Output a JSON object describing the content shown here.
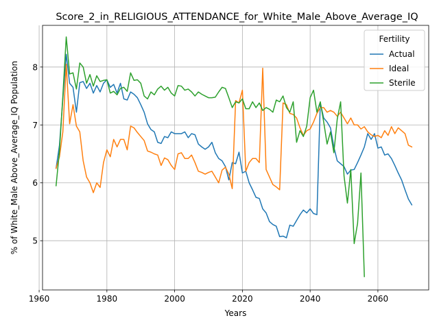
{
  "chart_data": {
    "type": "line",
    "title": "Score_2_in_RELIGIOUS_ATTENDANCE_for_White_Male_Above_Average_IQ",
    "xlabel": "Years",
    "ylabel": "% of White_Male Above_Average_IQ Population",
    "xlim": [
      1961,
      2075
    ],
    "ylim": [
      4.15,
      8.72
    ],
    "xticks": [
      1960,
      1980,
      2000,
      2020,
      2040,
      2060
    ],
    "yticks": [
      5,
      6,
      7,
      8
    ],
    "grid": true,
    "legend": {
      "title": "Fertility",
      "position": "top-right"
    },
    "series": [
      {
        "name": "Actual",
        "color": "#1f77b4",
        "x": [
          1965,
          1966,
          1967,
          1968,
          1969,
          1970,
          1971,
          1972,
          1973,
          1974,
          1975,
          1976,
          1977,
          1978,
          1979,
          1980,
          1981,
          1982,
          1983,
          1984,
          1985,
          1986,
          1987,
          1988,
          1989,
          1990,
          1991,
          1992,
          1993,
          1994,
          1995,
          1996,
          1997,
          1998,
          1999,
          2000,
          2001,
          2002,
          2003,
          2004,
          2005,
          2006,
          2007,
          2008,
          2009,
          2010,
          2011,
          2012,
          2013,
          2014,
          2015,
          2016,
          2017,
          2018,
          2019,
          2020,
          2021,
          2022,
          2023,
          2024,
          2025,
          2026,
          2027,
          2028,
          2029,
          2030,
          2031,
          2032,
          2033,
          2034,
          2035,
          2036,
          2037,
          2038,
          2039,
          2040,
          2041,
          2042,
          2043,
          2044,
          2045,
          2046,
          2047,
          2048,
          2049,
          2050,
          2051,
          2052,
          2053,
          2054,
          2055,
          2056,
          2057,
          2058,
          2059,
          2060,
          2061,
          2062,
          2063,
          2064,
          2065,
          2066,
          2067,
          2068,
          2069,
          2070
        ],
        "values": [
          6.25,
          6.65,
          7.45,
          8.22,
          7.72,
          7.65,
          7.22,
          7.73,
          7.75,
          7.63,
          7.72,
          7.55,
          7.68,
          7.57,
          7.72,
          7.78,
          7.65,
          7.7,
          7.55,
          7.72,
          7.45,
          7.43,
          7.57,
          7.53,
          7.47,
          7.35,
          7.22,
          7.02,
          6.92,
          6.88,
          6.7,
          6.68,
          6.8,
          6.78,
          6.88,
          6.85,
          6.85,
          6.85,
          6.88,
          6.78,
          6.85,
          6.83,
          6.67,
          6.62,
          6.58,
          6.62,
          6.7,
          6.52,
          6.42,
          6.38,
          6.28,
          6.05,
          6.35,
          6.33,
          6.53,
          6.17,
          6.2,
          6.0,
          5.88,
          5.75,
          5.73,
          5.55,
          5.48,
          5.33,
          5.28,
          5.25,
          5.07,
          5.08,
          5.05,
          5.27,
          5.25,
          5.35,
          5.45,
          5.53,
          5.48,
          5.55,
          5.47,
          5.45,
          7.38,
          7.12,
          7.05,
          6.95,
          6.62,
          6.38,
          6.33,
          6.28,
          6.15,
          6.22,
          6.23,
          6.35,
          6.48,
          6.62,
          6.85,
          6.75,
          6.85,
          6.6,
          6.62,
          6.48,
          6.5,
          6.42,
          6.3,
          6.17,
          6.05,
          5.88,
          5.72,
          5.62
        ]
      },
      {
        "name": "Ideal",
        "color": "#ff7f0e",
        "x": [
          1965,
          1966,
          1967,
          1968,
          1969,
          1970,
          1971,
          1972,
          1973,
          1974,
          1975,
          1976,
          1977,
          1978,
          1979,
          1980,
          1981,
          1982,
          1983,
          1984,
          1985,
          1986,
          1987,
          1988,
          1989,
          1990,
          1991,
          1992,
          1993,
          1994,
          1995,
          1996,
          1997,
          1998,
          1999,
          2000,
          2001,
          2002,
          2003,
          2004,
          2005,
          2006,
          2007,
          2008,
          2009,
          2010,
          2011,
          2012,
          2013,
          2014,
          2015,
          2016,
          2017,
          2018,
          2019,
          2020,
          2021,
          2022,
          2023,
          2024,
          2025,
          2026,
          2027,
          2028,
          2029,
          2030,
          2031,
          2032,
          2033,
          2034,
          2035,
          2036,
          2037,
          2038,
          2039,
          2040,
          2041,
          2042,
          2043,
          2044,
          2045,
          2046,
          2047,
          2048,
          2049,
          2050,
          2051,
          2052,
          2053,
          2054,
          2055,
          2056,
          2057,
          2058,
          2059,
          2060,
          2061,
          2062,
          2063,
          2064,
          2065,
          2066,
          2067,
          2068,
          2069,
          2070
        ],
        "values": [
          6.25,
          6.45,
          6.88,
          8.05,
          7.02,
          7.35,
          6.98,
          6.88,
          6.38,
          6.1,
          6.0,
          5.83,
          6.0,
          5.92,
          6.35,
          6.57,
          6.45,
          6.75,
          6.62,
          6.75,
          6.75,
          6.57,
          6.98,
          6.95,
          6.87,
          6.8,
          6.73,
          6.55,
          6.53,
          6.5,
          6.48,
          6.3,
          6.43,
          6.4,
          6.3,
          6.23,
          6.5,
          6.52,
          6.42,
          6.42,
          6.48,
          6.35,
          6.2,
          6.18,
          6.15,
          6.18,
          6.2,
          6.1,
          6.0,
          6.22,
          6.27,
          6.15,
          5.9,
          7.42,
          7.38,
          7.6,
          6.2,
          6.35,
          6.42,
          6.42,
          6.35,
          7.98,
          6.23,
          6.1,
          5.97,
          5.93,
          5.88,
          7.38,
          7.35,
          7.2,
          7.18,
          7.12,
          6.95,
          6.82,
          6.9,
          6.93,
          7.05,
          7.2,
          7.3,
          7.3,
          7.22,
          7.25,
          7.22,
          7.15,
          7.22,
          7.12,
          7.02,
          7.12,
          7.0,
          7.0,
          6.93,
          6.97,
          6.88,
          6.83,
          6.8,
          6.82,
          6.78,
          6.9,
          6.82,
          6.97,
          6.85,
          6.95,
          6.9,
          6.85,
          6.65,
          6.62
        ]
      },
      {
        "name": "Sterile",
        "color": "#2ca02c",
        "x": [
          1965,
          1966,
          1967,
          1968,
          1969,
          1970,
          1971,
          1972,
          1973,
          1974,
          1975,
          1976,
          1977,
          1978,
          1979,
          1980,
          1981,
          1982,
          1983,
          1984,
          1985,
          1986,
          1987,
          1988,
          1989,
          1990,
          1991,
          1992,
          1993,
          1994,
          1995,
          1996,
          1997,
          1998,
          1999,
          2000,
          2001,
          2002,
          2003,
          2004,
          2005,
          2006,
          2007,
          2008,
          2009,
          2010,
          2011,
          2012,
          2013,
          2014,
          2015,
          2016,
          2017,
          2018,
          2019,
          2020,
          2021,
          2022,
          2023,
          2024,
          2025,
          2026,
          2027,
          2028,
          2029,
          2030,
          2031,
          2032,
          2033,
          2034,
          2035,
          2036,
          2037,
          2038,
          2039,
          2040,
          2041,
          2042,
          2043,
          2044,
          2045,
          2046,
          2047,
          2048,
          2049,
          2050,
          2051,
          2052,
          2053,
          2054,
          2055,
          2056
        ],
        "values": [
          5.95,
          6.55,
          7.5,
          8.52,
          7.88,
          7.9,
          7.62,
          8.07,
          8.0,
          7.72,
          7.87,
          7.67,
          7.85,
          7.75,
          7.77,
          7.78,
          7.55,
          7.58,
          7.52,
          7.63,
          7.65,
          7.58,
          7.9,
          7.77,
          7.78,
          7.72,
          7.5,
          7.45,
          7.57,
          7.52,
          7.62,
          7.67,
          7.6,
          7.65,
          7.55,
          7.5,
          7.68,
          7.67,
          7.6,
          7.62,
          7.57,
          7.5,
          7.57,
          7.53,
          7.5,
          7.47,
          7.47,
          7.48,
          7.57,
          7.65,
          7.63,
          7.47,
          7.3,
          7.4,
          7.38,
          7.45,
          7.28,
          7.28,
          7.4,
          7.3,
          7.38,
          7.25,
          7.3,
          7.27,
          7.22,
          7.43,
          7.4,
          7.5,
          7.3,
          7.22,
          7.4,
          6.7,
          6.9,
          6.8,
          6.98,
          7.47,
          7.6,
          7.22,
          7.4,
          7.05,
          6.67,
          6.88,
          6.52,
          7.1,
          7.4,
          6.12,
          5.65,
          6.23,
          4.95,
          5.3,
          6.17,
          4.38
        ]
      }
    ]
  }
}
